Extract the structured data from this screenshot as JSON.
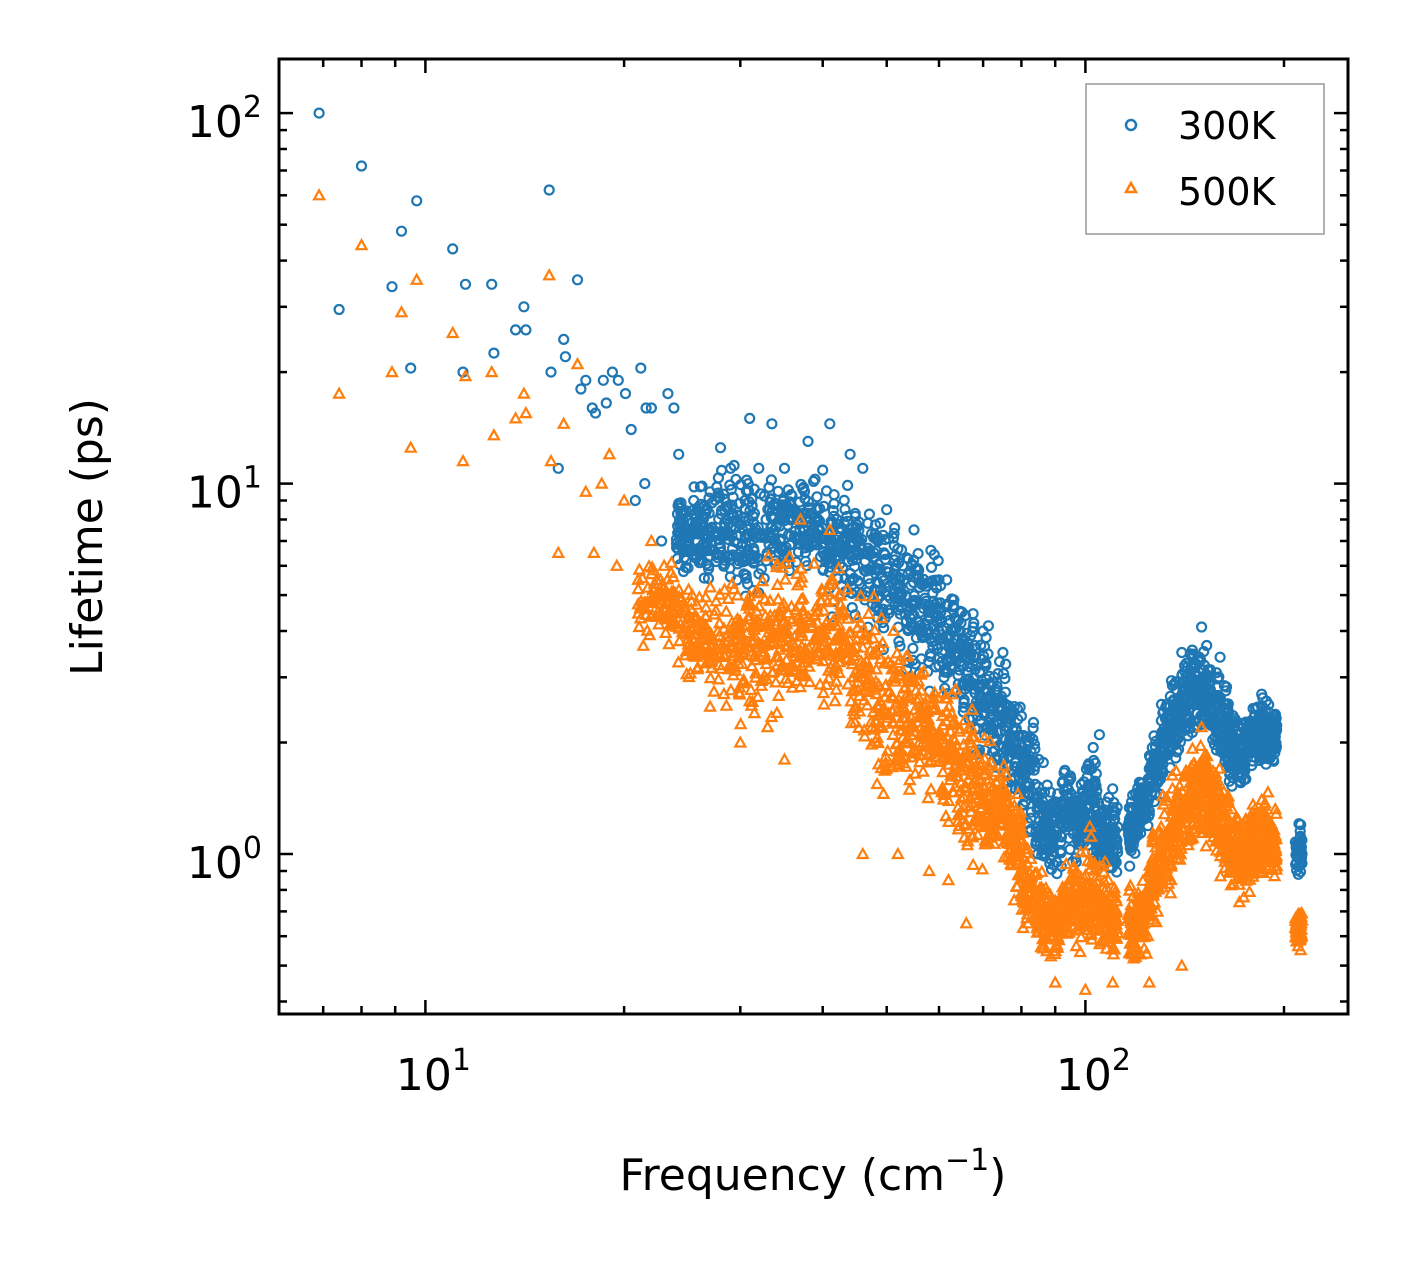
{
  "chart_data": {
    "type": "scatter",
    "xscale": "log",
    "yscale": "log",
    "xlim": [
      6,
      250
    ],
    "ylim": [
      0.37,
      140
    ],
    "xlabel": "Frequency (cm",
    "xlabel_sup": "−1",
    "xlabel_close": ")",
    "ylabel": "Lifetime (ps)",
    "x_ticks": [
      {
        "value": 10,
        "base": "10",
        "exp": "1"
      },
      {
        "value": 100,
        "base": "10",
        "exp": "2"
      }
    ],
    "y_ticks": [
      {
        "value": 1,
        "base": "10",
        "exp": "0"
      },
      {
        "value": 10,
        "base": "10",
        "exp": "1"
      },
      {
        "value": 100,
        "base": "10",
        "exp": "2"
      }
    ],
    "legend": {
      "location": "upper right"
    },
    "colors": {
      "s300": "#1f77b4",
      "s500": "#ff7f0e"
    },
    "series": [
      {
        "name": "300K",
        "marker": "circle",
        "color": "#1f77b4",
        "points": [
          [
            6.9,
            100
          ],
          [
            7.4,
            29.5
          ],
          [
            8.0,
            72
          ],
          [
            8.9,
            34
          ],
          [
            9.2,
            48
          ],
          [
            9.5,
            20.5
          ],
          [
            9.7,
            58
          ],
          [
            11.0,
            43
          ],
          [
            11.4,
            20
          ],
          [
            11.5,
            34.5
          ],
          [
            12.6,
            34.5
          ],
          [
            12.7,
            22.5
          ],
          [
            13.7,
            26
          ],
          [
            14.1,
            30
          ],
          [
            14.2,
            26
          ],
          [
            15.4,
            62
          ],
          [
            15.5,
            20
          ],
          [
            15.9,
            11
          ],
          [
            16.2,
            24.5
          ],
          [
            16.3,
            22
          ],
          [
            17.0,
            35.5
          ],
          [
            17.2,
            18
          ],
          [
            17.5,
            19
          ],
          [
            17.9,
            16
          ],
          [
            18.1,
            15.5
          ],
          [
            18.6,
            19
          ],
          [
            18.8,
            16.5
          ],
          [
            19.2,
            20
          ],
          [
            19.6,
            19
          ],
          [
            20.1,
            17.5
          ],
          [
            20.5,
            14
          ],
          [
            21.2,
            20.5
          ],
          [
            21.6,
            16
          ],
          [
            22.0,
            16
          ],
          [
            23.3,
            17.5
          ],
          [
            23.8,
            16
          ],
          [
            20.8,
            9
          ],
          [
            21.5,
            10
          ],
          [
            22.8,
            7
          ],
          [
            24.2,
            12
          ],
          [
            25.5,
            9
          ],
          [
            26.0,
            8
          ],
          [
            27.0,
            9.5
          ],
          [
            28.0,
            12.5
          ],
          [
            29.0,
            11
          ],
          [
            30.5,
            9
          ],
          [
            31.0,
            15
          ],
          [
            32.0,
            11
          ],
          [
            33.5,
            14.5
          ],
          [
            35.0,
            11
          ],
          [
            38.0,
            13
          ],
          [
            41.0,
            14.5
          ],
          [
            44.0,
            12
          ],
          [
            46.0,
            11
          ],
          [
            50.0,
            8.5
          ],
          [
            55.0,
            7.5
          ],
          [
            60.0,
            5.5
          ],
          [
            65.0,
            4.5
          ],
          [
            70.0,
            4
          ],
          [
            75.0,
            3.5
          ],
          [
            78.0,
            2.5
          ],
          [
            85.0,
            1.8
          ],
          [
            95.0,
            1.6
          ],
          [
            105.0,
            2.1
          ],
          [
            110.0,
            1.5
          ],
          [
            125.0,
            1.7
          ],
          [
            140.0,
            3.5
          ],
          [
            150.0,
            4.1
          ],
          [
            160.0,
            3.4
          ],
          [
            185.0,
            2.7
          ],
          [
            212.0,
            1.2
          ]
        ],
        "band": [
          [
            24,
            25,
            5.0,
            10.5
          ],
          [
            25,
            27,
            5.0,
            11
          ],
          [
            27,
            30,
            4.5,
            12
          ],
          [
            30,
            33,
            4.5,
            12
          ],
          [
            33,
            36,
            5.0,
            12
          ],
          [
            36,
            40,
            5.2,
            11.5
          ],
          [
            40,
            44,
            4.2,
            11
          ],
          [
            44,
            48,
            3.8,
            10
          ],
          [
            48,
            52,
            3.3,
            9.5
          ],
          [
            52,
            56,
            2.8,
            8.5
          ],
          [
            56,
            60,
            2.6,
            7.5
          ],
          [
            60,
            64,
            2.3,
            6.5
          ],
          [
            64,
            68,
            1.9,
            5.5
          ],
          [
            68,
            72,
            1.6,
            4.5
          ],
          [
            72,
            76,
            1.4,
            3.8
          ],
          [
            76,
            80,
            1.3,
            3.0
          ],
          [
            80,
            84,
            1.0,
            2.6
          ],
          [
            84,
            88,
            0.8,
            1.9
          ],
          [
            88,
            92,
            0.8,
            1.7
          ],
          [
            92,
            96,
            0.9,
            1.9
          ],
          [
            96,
            100,
            0.9,
            1.8
          ],
          [
            100,
            104,
            0.9,
            2.1
          ],
          [
            104,
            108,
            0.8,
            1.6
          ],
          [
            108,
            112,
            0.8,
            1.5
          ],
          [
            116,
            120,
            0.9,
            1.5
          ],
          [
            120,
            125,
            1.1,
            1.7
          ],
          [
            125,
            130,
            1.3,
            2.3
          ],
          [
            130,
            135,
            1.5,
            2.9
          ],
          [
            135,
            140,
            1.7,
            3.2
          ],
          [
            140,
            145,
            1.9,
            3.6
          ],
          [
            145,
            150,
            2.0,
            4.0
          ],
          [
            150,
            155,
            1.9,
            3.8
          ],
          [
            155,
            160,
            1.7,
            3.4
          ],
          [
            160,
            165,
            1.5,
            3.0
          ],
          [
            165,
            170,
            1.4,
            2.7
          ],
          [
            170,
            175,
            1.4,
            2.4
          ],
          [
            175,
            180,
            1.6,
            2.6
          ],
          [
            180,
            185,
            1.7,
            2.7
          ],
          [
            185,
            190,
            1.6,
            2.8
          ],
          [
            190,
            195,
            1.6,
            2.6
          ],
          [
            208,
            213,
            0.85,
            1.25
          ]
        ]
      },
      {
        "name": "500K",
        "marker": "triangle",
        "color": "#ff7f0e",
        "points": [
          [
            6.9,
            60
          ],
          [
            7.4,
            17.5
          ],
          [
            8.0,
            44
          ],
          [
            8.9,
            20
          ],
          [
            9.2,
            29
          ],
          [
            9.5,
            12.5
          ],
          [
            9.7,
            35.5
          ],
          [
            11.0,
            25.5
          ],
          [
            11.4,
            11.5
          ],
          [
            11.5,
            19.5
          ],
          [
            12.6,
            20
          ],
          [
            12.7,
            13.5
          ],
          [
            13.7,
            15
          ],
          [
            14.1,
            17.5
          ],
          [
            14.2,
            15.5
          ],
          [
            15.4,
            36.5
          ],
          [
            15.5,
            11.5
          ],
          [
            15.9,
            6.5
          ],
          [
            16.2,
            14.5
          ],
          [
            17.0,
            21
          ],
          [
            17.5,
            9.5
          ],
          [
            18.0,
            6.5
          ],
          [
            18.5,
            10
          ],
          [
            19.0,
            12
          ],
          [
            19.5,
            6
          ],
          [
            20.0,
            9
          ],
          [
            21.0,
            5.5
          ],
          [
            22.0,
            7
          ],
          [
            22.5,
            4.5
          ],
          [
            23.0,
            6
          ],
          [
            25.0,
            3.8
          ],
          [
            27.0,
            2.5
          ],
          [
            30.0,
            2.0
          ],
          [
            33.0,
            2.2
          ],
          [
            35.0,
            1.8
          ],
          [
            37.0,
            8.0
          ],
          [
            41.0,
            7.5
          ],
          [
            46.0,
            1.0
          ],
          [
            52.0,
            1.0
          ],
          [
            58.0,
            0.9
          ],
          [
            62.0,
            0.85
          ],
          [
            66.0,
            0.65
          ],
          [
            72.0,
            1.2
          ],
          [
            78.0,
            0.75
          ],
          [
            90.0,
            0.45
          ],
          [
            100.0,
            0.43
          ],
          [
            110.0,
            0.45
          ],
          [
            125.0,
            0.45
          ],
          [
            140.0,
            0.5
          ],
          [
            150.0,
            2.2
          ],
          [
            165.0,
            1.2
          ],
          [
            185.0,
            1.4
          ],
          [
            212.0,
            0.55
          ]
        ],
        "band": [
          [
            21,
            24,
            3.5,
            6.5
          ],
          [
            24,
            27,
            2.7,
            6.0
          ],
          [
            27,
            30,
            2.3,
            6.0
          ],
          [
            30,
            33,
            2.0,
            6.5
          ],
          [
            33,
            36,
            2.2,
            7.0
          ],
          [
            36,
            40,
            2.4,
            7.0
          ],
          [
            40,
            44,
            2.2,
            6.5
          ],
          [
            44,
            48,
            1.7,
            5.5
          ],
          [
            48,
            52,
            1.3,
            5.0
          ],
          [
            52,
            56,
            1.3,
            4.3
          ],
          [
            56,
            60,
            1.3,
            3.8
          ],
          [
            60,
            64,
            1.1,
            3.3
          ],
          [
            64,
            68,
            0.8,
            2.8
          ],
          [
            68,
            72,
            0.8,
            2.3
          ],
          [
            72,
            76,
            0.85,
            2.0
          ],
          [
            76,
            80,
            0.75,
            1.6
          ],
          [
            80,
            84,
            0.55,
            1.2
          ],
          [
            84,
            88,
            0.5,
            0.95
          ],
          [
            88,
            92,
            0.5,
            0.9
          ],
          [
            92,
            96,
            0.5,
            1.05
          ],
          [
            96,
            100,
            0.5,
            1.1
          ],
          [
            100,
            104,
            0.5,
            1.25
          ],
          [
            104,
            108,
            0.5,
            1.05
          ],
          [
            108,
            112,
            0.5,
            0.9
          ],
          [
            116,
            120,
            0.45,
            0.85
          ],
          [
            120,
            125,
            0.5,
            0.95
          ],
          [
            125,
            130,
            0.6,
            1.25
          ],
          [
            130,
            135,
            0.7,
            1.55
          ],
          [
            135,
            140,
            0.8,
            1.8
          ],
          [
            140,
            145,
            0.9,
            2.0
          ],
          [
            145,
            150,
            1.0,
            2.3
          ],
          [
            150,
            155,
            1.0,
            2.2
          ],
          [
            155,
            160,
            0.9,
            1.9
          ],
          [
            160,
            165,
            0.8,
            1.7
          ],
          [
            165,
            170,
            0.7,
            1.5
          ],
          [
            170,
            175,
            0.7,
            1.35
          ],
          [
            175,
            180,
            0.75,
            1.45
          ],
          [
            180,
            185,
            0.8,
            1.5
          ],
          [
            185,
            190,
            0.8,
            1.55
          ],
          [
            190,
            195,
            0.8,
            1.4
          ],
          [
            208,
            213,
            0.52,
            0.75
          ]
        ]
      }
    ]
  }
}
